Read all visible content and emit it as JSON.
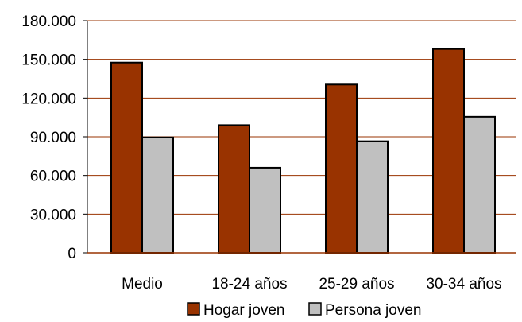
{
  "chart_data": {
    "type": "bar",
    "title": "",
    "xlabel": "",
    "ylabel": "",
    "categories": [
      "Medio",
      "18-24 años",
      "25-29 años",
      "30-34 años"
    ],
    "series": [
      {
        "name": "Hogar joven",
        "color": "#993300",
        "values": [
          147500,
          99000,
          130500,
          158000
        ]
      },
      {
        "name": "Persona joven",
        "color": "#c0c0c0",
        "values": [
          89500,
          66000,
          86500,
          105500
        ]
      }
    ],
    "ylim": [
      0,
      180000
    ],
    "yticks": [
      {
        "value": 0,
        "label": "0"
      },
      {
        "value": 30000,
        "label": "30.000"
      },
      {
        "value": 60000,
        "label": "60.000"
      },
      {
        "value": 90000,
        "label": "90.000"
      },
      {
        "value": 120000,
        "label": "120.000"
      },
      {
        "value": 150000,
        "label": "150.000"
      },
      {
        "value": 180000,
        "label": "180.000"
      }
    ],
    "grid": true,
    "grid_color": "#993300",
    "legend_position": "bottom"
  }
}
